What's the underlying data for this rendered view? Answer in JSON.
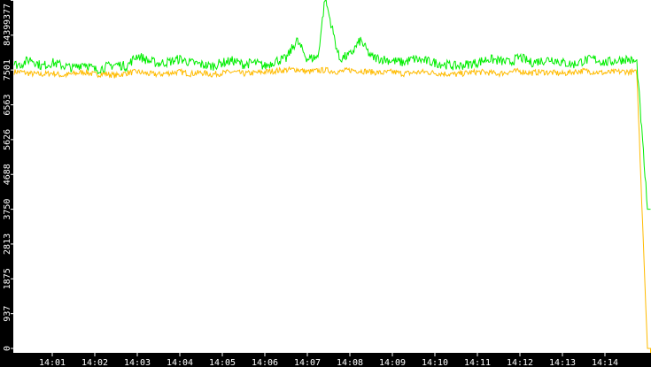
{
  "chart_data": {
    "type": "line",
    "ylim": [
      0,
      9377
    ],
    "yticks": [
      "0",
      "937",
      "1875",
      "2813",
      "3750",
      "4688",
      "5626",
      "6563",
      "7501",
      "8439",
      "9377"
    ],
    "xticks": [
      "14:01",
      "14:02",
      "14:03",
      "14:04",
      "14:05",
      "14:06",
      "14:07",
      "14:08",
      "14:09",
      "14:10",
      "14:11",
      "14:12",
      "14:13",
      "14:14"
    ],
    "x": [
      "14:00:15",
      "14:00:30",
      "14:00:45",
      "14:01:00",
      "14:01:15",
      "14:01:30",
      "14:01:45",
      "14:02:00",
      "14:02:15",
      "14:02:30",
      "14:02:45",
      "14:03:00",
      "14:03:15",
      "14:03:30",
      "14:03:45",
      "14:04:00",
      "14:04:15",
      "14:04:30",
      "14:04:45",
      "14:05:00",
      "14:05:15",
      "14:05:30",
      "14:05:45",
      "14:06:00",
      "14:06:15",
      "14:06:30",
      "14:06:45",
      "14:07:00",
      "14:07:15",
      "14:07:25",
      "14:07:45",
      "14:08:00",
      "14:08:15",
      "14:08:30",
      "14:08:45",
      "14:09:00",
      "14:09:15",
      "14:09:30",
      "14:09:45",
      "14:10:00",
      "14:10:15",
      "14:10:30",
      "14:10:45",
      "14:11:00",
      "14:11:15",
      "14:11:30",
      "14:11:45",
      "14:12:00",
      "14:12:15",
      "14:12:30",
      "14:12:45",
      "14:13:00",
      "14:13:15",
      "14:13:30",
      "14:13:45",
      "14:14:00",
      "14:14:15",
      "14:14:30",
      "14:14:45",
      "14:15:00"
    ],
    "series": [
      {
        "color": "#00ee00",
        "values": [
          7650,
          7800,
          7600,
          7700,
          7620,
          7550,
          7700,
          7500,
          7580,
          7650,
          7600,
          7900,
          7750,
          7680,
          7720,
          7800,
          7700,
          7650,
          7600,
          7700,
          7750,
          7650,
          7700,
          7600,
          7750,
          7800,
          8300,
          7800,
          7850,
          9450,
          7800,
          7900,
          8300,
          7850,
          7800,
          7750,
          7700,
          7800,
          7750,
          7700,
          7650,
          7600,
          7650,
          7700,
          7800,
          7750,
          7700,
          7850,
          7700,
          7750,
          7800,
          7700,
          7650,
          7750,
          7800,
          7700,
          7750,
          7800,
          7700,
          3750
        ]
      },
      {
        "color": "#ffbb00",
        "values": [
          7450,
          7400,
          7380,
          7420,
          7350,
          7400,
          7450,
          7380,
          7400,
          7350,
          7420,
          7450,
          7400,
          7380,
          7420,
          7450,
          7400,
          7430,
          7380,
          7420,
          7450,
          7400,
          7420,
          7450,
          7480,
          7500,
          7520,
          7450,
          7480,
          7500,
          7450,
          7500,
          7480,
          7450,
          7420,
          7450,
          7400,
          7430,
          7450,
          7420,
          7400,
          7380,
          7420,
          7450,
          7430,
          7400,
          7450,
          7470,
          7420,
          7450,
          7430,
          7400,
          7450,
          7480,
          7450,
          7420,
          7450,
          7460,
          7430,
          0
        ]
      }
    ],
    "colors": {
      "background": "#ffffff",
      "axis": "#000000"
    }
  }
}
